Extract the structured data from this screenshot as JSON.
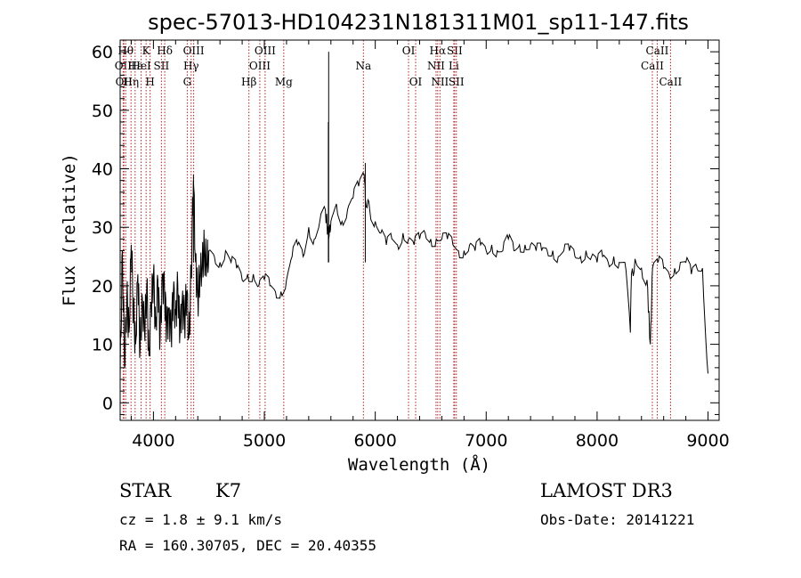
{
  "chart_data": {
    "type": "line",
    "title": "spec-57013-HD104231N181311M01_sp11-147.fits",
    "xlabel": "Wavelength (Å)",
    "ylabel": "Flux (relative)",
    "xlim": [
      3700,
      9100
    ],
    "ylim": [
      -3,
      62
    ],
    "xticks": [
      4000,
      5000,
      6000,
      7000,
      8000,
      9000
    ],
    "yticks": [
      0,
      10,
      20,
      30,
      40,
      50,
      60
    ],
    "series": [
      {
        "name": "flux",
        "x": [
          3700,
          3720,
          3740,
          3760,
          3780,
          3800,
          3820,
          3840,
          3860,
          3880,
          3900,
          3920,
          3940,
          3960,
          3980,
          4000,
          4020,
          4040,
          4060,
          4080,
          4100,
          4120,
          4140,
          4160,
          4180,
          4200,
          4220,
          4240,
          4260,
          4280,
          4300,
          4320,
          4340,
          4360,
          4380,
          4400,
          4420,
          4440,
          4460,
          4480,
          4500,
          4550,
          4600,
          4650,
          4700,
          4750,
          4800,
          4850,
          4900,
          4950,
          5000,
          5050,
          5100,
          5150,
          5200,
          5250,
          5300,
          5350,
          5400,
          5450,
          5500,
          5550,
          5580,
          5600,
          5650,
          5700,
          5750,
          5800,
          5850,
          5900,
          5910,
          5950,
          6000,
          6050,
          6100,
          6150,
          6200,
          6250,
          6300,
          6350,
          6400,
          6450,
          6500,
          6550,
          6600,
          6650,
          6700,
          6750,
          6800,
          6850,
          6900,
          6950,
          7000,
          7050,
          7100,
          7150,
          7200,
          7250,
          7300,
          7350,
          7400,
          7450,
          7500,
          7550,
          7600,
          7650,
          7700,
          7750,
          7800,
          7850,
          7900,
          7950,
          8000,
          8050,
          8100,
          8150,
          8200,
          8250,
          8300,
          8310,
          8350,
          8400,
          8450,
          8480,
          8500,
          8550,
          8600,
          8650,
          8700,
          8750,
          8800,
          8850,
          8900,
          8950,
          9000
        ],
        "y": [
          4,
          26,
          6,
          18,
          12,
          27,
          15,
          10,
          22,
          9,
          18,
          12,
          20,
          8,
          17,
          22,
          13,
          21,
          11,
          22,
          19,
          13,
          16,
          12,
          19,
          15,
          20,
          12,
          18,
          14,
          19,
          11,
          22,
          38,
          24,
          18,
          21,
          24,
          26,
          23,
          26,
          25,
          24,
          26,
          24,
          23,
          21,
          22,
          22,
          20,
          21,
          20,
          19,
          19,
          21,
          25,
          27,
          25,
          30,
          28,
          31,
          33,
          28,
          31,
          34,
          31,
          33,
          35,
          37,
          39,
          35,
          33,
          31,
          29,
          27,
          28,
          27,
          29,
          28,
          27,
          28,
          29,
          28,
          28,
          28,
          28,
          27,
          26,
          26,
          27,
          26,
          27,
          26,
          27,
          26,
          26,
          28,
          26,
          27,
          27,
          27,
          26,
          26,
          26,
          26,
          25,
          26,
          26,
          25,
          25,
          26,
          25,
          24,
          25,
          24,
          25,
          24,
          24,
          12,
          22,
          24,
          23,
          21,
          10,
          23,
          24,
          23,
          22,
          23,
          24,
          24,
          22,
          23,
          23,
          5
        ]
      }
    ],
    "spikes": [
      {
        "x": 5577,
        "y": 48
      },
      {
        "x": 5580,
        "y": 60
      },
      {
        "x": 4361,
        "y": 39
      },
      {
        "x": 5910,
        "y": 41
      }
    ],
    "spectral_lines": [
      {
        "x": 3727,
        "label": "OII",
        "row": 2
      },
      {
        "x": 3734,
        "label": "OII",
        "row": 3
      },
      {
        "x": 3750,
        "label": "Hθ",
        "row": 1
      },
      {
        "x": 3798,
        "label": "Hη",
        "row": 3
      },
      {
        "x": 3835,
        "label": "Hε",
        "row": 2
      },
      {
        "x": 3889,
        "label": "HeI",
        "row": 2
      },
      {
        "x": 3934,
        "label": "K",
        "row": 1
      },
      {
        "x": 3970,
        "label": "H",
        "row": 3
      },
      {
        "x": 4072,
        "label": "SII",
        "row": 2
      },
      {
        "x": 4102,
        "label": "Hδ",
        "row": 1
      },
      {
        "x": 4305,
        "label": "G",
        "row": 3
      },
      {
        "x": 4340,
        "label": "Hγ",
        "row": 2
      },
      {
        "x": 4363,
        "label": "OIII",
        "row": 1
      },
      {
        "x": 4861,
        "label": "Hβ",
        "row": 3
      },
      {
        "x": 4959,
        "label": "OIII",
        "row": 2
      },
      {
        "x": 5007,
        "label": "OIII",
        "row": 1
      },
      {
        "x": 5175,
        "label": "Mg",
        "row": 3
      },
      {
        "x": 5893,
        "label": "Na",
        "row": 2
      },
      {
        "x": 6300,
        "label": "OI",
        "row": 1
      },
      {
        "x": 6364,
        "label": "OI",
        "row": 3
      },
      {
        "x": 6548,
        "label": "NII",
        "row": 2
      },
      {
        "x": 6563,
        "label": "Hα",
        "row": 1
      },
      {
        "x": 6583,
        "label": "NII",
        "row": 3
      },
      {
        "x": 6708,
        "label": "Li",
        "row": 2
      },
      {
        "x": 6716,
        "label": "SII",
        "row": 1
      },
      {
        "x": 6731,
        "label": "SII",
        "row": 3
      },
      {
        "x": 8498,
        "label": "CaII",
        "row": 2
      },
      {
        "x": 8542,
        "label": "CaII",
        "row": 1
      },
      {
        "x": 8662,
        "label": "CaII",
        "row": 3
      }
    ]
  },
  "info": {
    "object_class": "STAR",
    "subclass": "K7",
    "survey": "LAMOST DR3",
    "cz": "cz = 1.8 ± 9.1 km/s",
    "obs_date": "Obs-Date: 20141221",
    "radec": "RA = 160.30705, DEC =  20.40355"
  },
  "colors": {
    "line_marker": "#b22222",
    "spectrum": "#000000"
  }
}
